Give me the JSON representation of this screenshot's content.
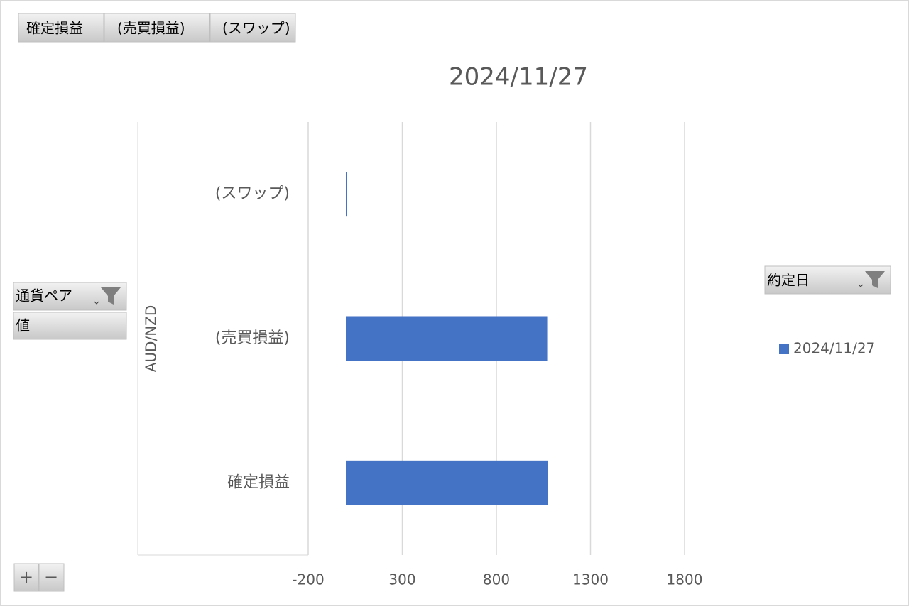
{
  "chart_data": {
    "type": "barh",
    "title": "2024/11/27",
    "y_label": "AUD/NZD",
    "categories": [
      "確定損益",
      "(売買損益)",
      "(スワップ)"
    ],
    "series": [
      {
        "name": "2024/11/27",
        "color": "#4472c4",
        "values": [
          1073,
          1070,
          3
        ]
      }
    ],
    "xlim": [
      -200,
      1800
    ],
    "xticks": [
      -200,
      300,
      800,
      1300,
      1800
    ],
    "grid": true,
    "legend": "right"
  },
  "field_buttons": {
    "values": [
      "確定損益",
      "(売買損益)",
      "(スワップ)"
    ],
    "axis": "通貨ペア",
    "value_field": "値",
    "legend": "約定日",
    "expand": "+",
    "collapse": "−"
  }
}
